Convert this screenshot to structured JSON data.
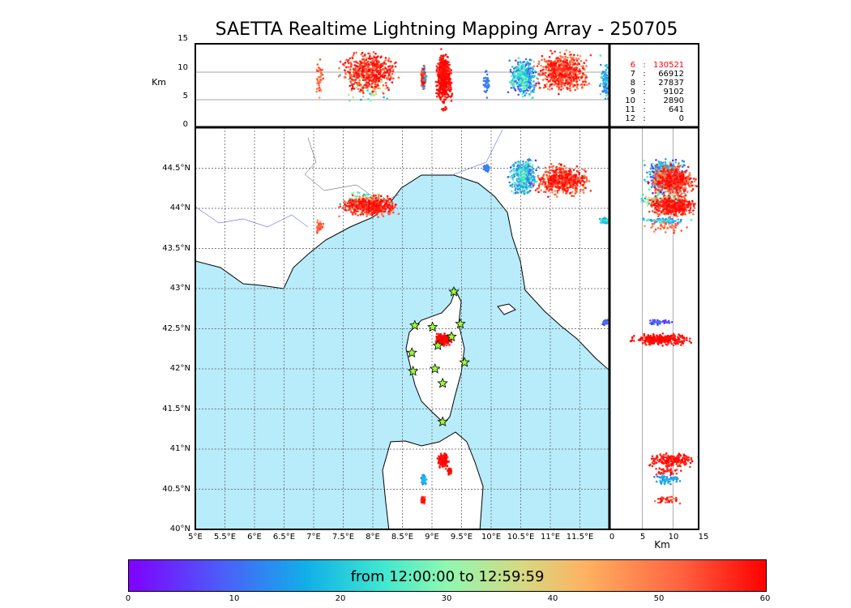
{
  "title": "SAETTA Realtime Lightning Mapping Array - 250705",
  "altitude_axis": {
    "label": "Km",
    "ticks": [
      "15",
      "10",
      "5",
      "0"
    ]
  },
  "lat_ticks": [
    "44.5°N",
    "44°N",
    "43.5°N",
    "43°N",
    "42.5°N",
    "42°N",
    "41.5°N",
    "41°N",
    "40.5°N",
    "40°N"
  ],
  "lon_ticks": [
    "5°E",
    "5.5°E",
    "6°E",
    "6.5°E",
    "7°E",
    "7.5°E",
    "8°E",
    "8.5°E",
    "9°E",
    "9.5°E",
    "10°E",
    "10.5°E",
    "11°E",
    "11.5°E"
  ],
  "right_axis": {
    "label": "Km",
    "ticks": [
      "0",
      "5",
      "10",
      "15"
    ]
  },
  "station_counts": [
    {
      "n": "6",
      "sep": ":",
      "count": "130521",
      "color": "#ff0000"
    },
    {
      "n": "7",
      "sep": ":",
      "count": "66912",
      "color": "#000000"
    },
    {
      "n": "8",
      "sep": ":",
      "count": "27837",
      "color": "#000000"
    },
    {
      "n": "9",
      "sep": ":",
      "count": "9102",
      "color": "#000000"
    },
    {
      "n": "10",
      "sep": ":",
      "count": "2890",
      "color": "#000000"
    },
    {
      "n": "11",
      "sep": ":",
      "count": "641",
      "color": "#000000"
    },
    {
      "n": "12",
      "sep": ":",
      "count": "0",
      "color": "#000000"
    }
  ],
  "colorbar": {
    "label": "from 12:00:00 to 12:59:59",
    "ticks": [
      "0",
      "10",
      "20",
      "30",
      "40",
      "50",
      "60"
    ],
    "range_minutes": [
      0,
      60
    ]
  },
  "stations": [
    [
      8.71,
      42.54
    ],
    [
      9.01,
      42.52
    ],
    [
      9.48,
      42.56
    ],
    [
      9.37,
      42.96
    ],
    [
      9.33,
      42.4
    ],
    [
      9.1,
      42.29
    ],
    [
      8.66,
      42.2
    ],
    [
      9.55,
      42.08
    ],
    [
      9.05,
      42.0
    ],
    [
      8.68,
      41.97
    ],
    [
      9.18,
      41.82
    ],
    [
      9.18,
      41.34
    ]
  ],
  "lightning_clusters": [
    {
      "lon": 7.93,
      "lat": 44.03,
      "dlon": 0.4,
      "dlat": 0.1,
      "alt": 10,
      "dalt": 3,
      "tmin": 48,
      "tmax": 60,
      "n": 500
    },
    {
      "lon": 7.9,
      "lat": 44.1,
      "dlon": 0.35,
      "dlat": 0.08,
      "alt": 8,
      "dalt": 3,
      "tmin": 15,
      "tmax": 40,
      "n": 120
    },
    {
      "lon": 7.1,
      "lat": 43.77,
      "dlon": 0.06,
      "dlat": 0.06,
      "alt": 9,
      "dalt": 3,
      "tmin": 45,
      "tmax": 55,
      "n": 40
    },
    {
      "lon": 9.2,
      "lat": 42.37,
      "dlon": 0.12,
      "dlat": 0.06,
      "alt": 8,
      "dalt": 4,
      "tmin": 56,
      "tmax": 60,
      "n": 300
    },
    {
      "lon": 9.92,
      "lat": 44.5,
      "dlon": 0.05,
      "dlat": 0.04,
      "alt": 8,
      "dalt": 2,
      "tmin": 8,
      "tmax": 14,
      "n": 40
    },
    {
      "lon": 10.55,
      "lat": 44.4,
      "dlon": 0.2,
      "dlat": 0.2,
      "alt": 9,
      "dalt": 3,
      "tmin": 2,
      "tmax": 30,
      "n": 400
    },
    {
      "lon": 11.2,
      "lat": 44.35,
      "dlon": 0.35,
      "dlat": 0.15,
      "alt": 10,
      "dalt": 3,
      "tmin": 45,
      "tmax": 60,
      "n": 600
    },
    {
      "lon": 11.93,
      "lat": 43.85,
      "dlon": 0.08,
      "dlat": 0.03,
      "alt": 9,
      "dalt": 3,
      "tmin": 10,
      "tmax": 25,
      "n": 60
    },
    {
      "lon": 11.93,
      "lat": 42.58,
      "dlon": 0.04,
      "dlat": 0.03,
      "alt": 8,
      "dalt": 2,
      "tmin": 3,
      "tmax": 12,
      "n": 40
    },
    {
      "lon": 9.19,
      "lat": 40.86,
      "dlon": 0.08,
      "dlat": 0.08,
      "alt": 10,
      "dalt": 3,
      "tmin": 54,
      "tmax": 60,
      "n": 200
    },
    {
      "lon": 8.86,
      "lat": 40.62,
      "dlon": 0.04,
      "dlat": 0.06,
      "alt": 9,
      "dalt": 2,
      "tmin": 10,
      "tmax": 20,
      "n": 60
    },
    {
      "lon": 8.85,
      "lat": 40.37,
      "dlon": 0.04,
      "dlat": 0.04,
      "alt": 9,
      "dalt": 2,
      "tmin": 50,
      "tmax": 60,
      "n": 40
    },
    {
      "lon": 9.3,
      "lat": 40.72,
      "dlon": 0.03,
      "dlat": 0.05,
      "alt": 9,
      "dalt": 2,
      "tmin": 55,
      "tmax": 60,
      "n": 30
    }
  ]
}
